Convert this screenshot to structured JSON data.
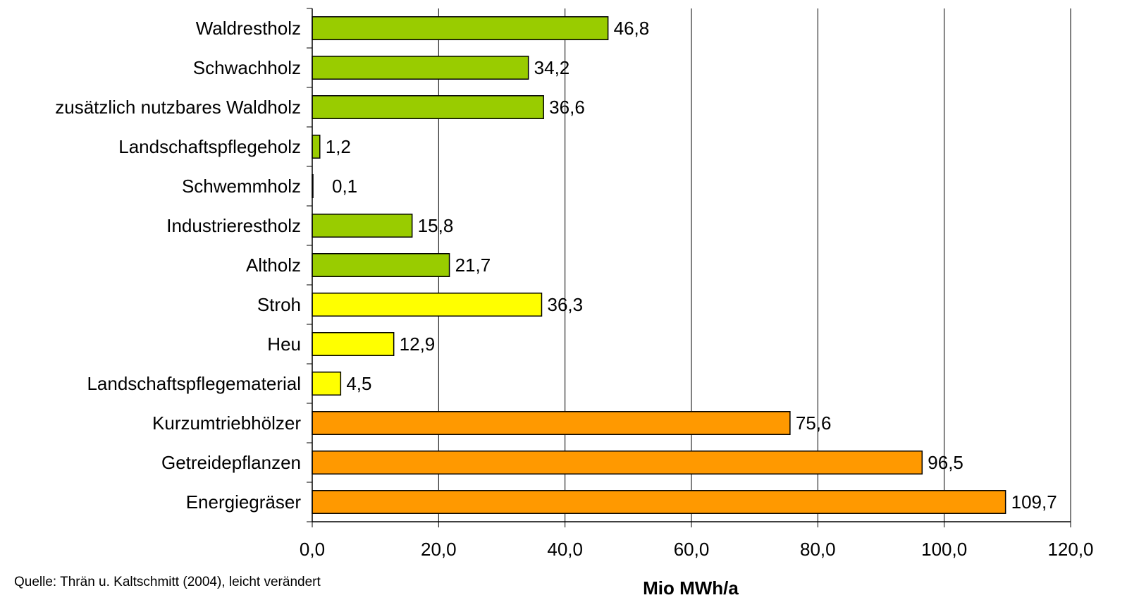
{
  "chart_data": {
    "type": "bar",
    "orientation": "horizontal",
    "categories": [
      "Waldrestholz",
      "Schwachholz",
      "zusätzlich nutzbares Waldholz",
      "Landschaftspflegeholz",
      "Schwemmholz",
      "Industrierestholz",
      "Altholz",
      "Stroh",
      "Heu",
      "Landschaftspflegematerial",
      "Kurzumtriebhölzer",
      "Getreidepflanzen",
      "Energiegräser"
    ],
    "values": [
      46.8,
      34.2,
      36.6,
      1.2,
      0.1,
      15.8,
      21.7,
      36.3,
      12.9,
      4.5,
      75.6,
      96.5,
      109.7
    ],
    "value_labels": [
      "46,8",
      "34,2",
      "36,6",
      "1,2",
      "0,1",
      "15,8",
      "21,7",
      "36,3",
      "12,9",
      "4,5",
      "75,6",
      "96,5",
      "109,7"
    ],
    "bar_colors": [
      "#99cc00",
      "#99cc00",
      "#99cc00",
      "#99cc00",
      "#99cc00",
      "#99cc00",
      "#99cc00",
      "#ffff00",
      "#ffff00",
      "#ffff00",
      "#ff9900",
      "#ff9900",
      "#ff9900"
    ],
    "xlabel": "Mio MWh/a",
    "xlim": [
      0,
      120
    ],
    "xticks": [
      0,
      20,
      40,
      60,
      80,
      100,
      120
    ],
    "xtick_labels": [
      "0,0",
      "20,0",
      "40,0",
      "60,0",
      "80,0",
      "100,0",
      "120,0"
    ],
    "grid": "vertical",
    "legend": "none"
  },
  "source_note": "Quelle: Thrän u. Kaltschmitt (2004), leicht verändert"
}
